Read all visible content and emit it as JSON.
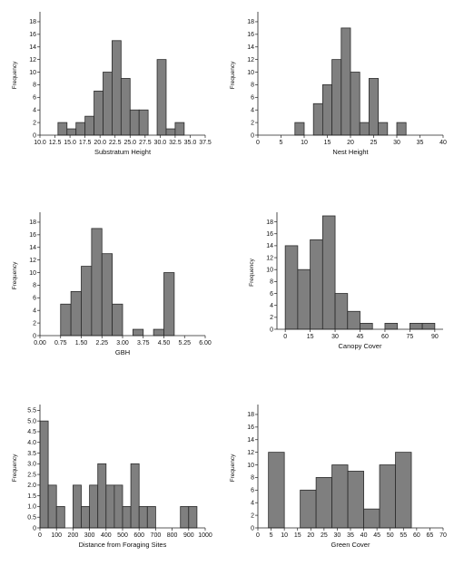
{
  "chart_data": [
    {
      "type": "bar",
      "xlabel": "Substratum Height",
      "ylabel": "Frequency",
      "xlim": [
        10.0,
        37.5
      ],
      "xticks": [
        10.0,
        12.5,
        15.0,
        17.5,
        20.0,
        22.5,
        25.0,
        27.5,
        30.0,
        32.5,
        35.0,
        37.5
      ],
      "xtick_labels": [
        "10.0",
        "12.5",
        "15.0",
        "17.5",
        "20.0",
        "22.5",
        "25.0",
        "27.5",
        "30.0",
        "32.5",
        "35.0",
        "37.5"
      ],
      "ylim": [
        0,
        19
      ],
      "yticks": [
        0,
        2,
        4,
        6,
        8,
        10,
        12,
        14,
        16,
        18
      ],
      "bin_width": 1.5,
      "bin_starts": [
        13,
        14.5,
        16,
        17.5,
        19,
        20.5,
        22,
        23.5,
        25,
        26.5,
        28,
        29.5,
        31,
        32.5
      ],
      "values": [
        2,
        1,
        2,
        3,
        7,
        10,
        15,
        9,
        4,
        4,
        0,
        12,
        1,
        2
      ]
    },
    {
      "type": "bar",
      "xlabel": "Nest Height",
      "ylabel": "Frequency",
      "xlim": [
        0,
        40
      ],
      "xticks": [
        0,
        5,
        10,
        15,
        20,
        25,
        30,
        35,
        40
      ],
      "xtick_labels": [
        "0",
        "5",
        "10",
        "15",
        "20",
        "25",
        "30",
        "35",
        "40"
      ],
      "ylim": [
        0,
        19
      ],
      "yticks": [
        0,
        2,
        4,
        6,
        8,
        10,
        12,
        14,
        16,
        18
      ],
      "bin_width": 2,
      "bin_starts": [
        8,
        10,
        12,
        14,
        16,
        18,
        20,
        22,
        24,
        26,
        28,
        30
      ],
      "values": [
        2,
        0,
        5,
        8,
        12,
        17,
        10,
        2,
        9,
        2,
        0,
        2
      ]
    },
    {
      "type": "bar",
      "xlabel": "GBH",
      "ylabel": "Frequency",
      "xlim": [
        0,
        6
      ],
      "xticks": [
        0,
        0.75,
        1.5,
        2.25,
        3,
        3.75,
        4.5,
        5.25,
        6
      ],
      "xtick_labels": [
        "0.00",
        "0.75",
        "1.50",
        "2.25",
        "3.00",
        "3.75",
        "4.50",
        "5.25",
        "6.00"
      ],
      "ylim": [
        0,
        19
      ],
      "yticks": [
        0,
        2,
        4,
        6,
        8,
        10,
        12,
        14,
        16,
        18
      ],
      "bin_width": 0.375,
      "bin_starts": [
        0.75,
        1.125,
        1.5,
        1.875,
        2.25,
        2.625,
        3.0,
        3.375,
        3.75,
        4.125,
        4.5
      ],
      "values": [
        5,
        7,
        11,
        17,
        13,
        5,
        0,
        1,
        0,
        1,
        10
      ]
    },
    {
      "type": "bar",
      "xlabel": "Canopy Cover",
      "ylabel": "Frequency",
      "xlim": [
        -5,
        95
      ],
      "xticks": [
        0,
        15,
        30,
        45,
        60,
        75,
        90
      ],
      "xtick_labels": [
        "0",
        "15",
        "30",
        "45",
        "60",
        "75",
        "90"
      ],
      "ylim": [
        0,
        19
      ],
      "yticks": [
        0,
        2,
        4,
        6,
        8,
        10,
        12,
        14,
        16,
        18
      ],
      "bin_width": 7.5,
      "bin_starts": [
        0,
        7.5,
        15,
        22.5,
        30,
        37.5,
        45,
        52.5,
        60,
        67.5,
        75,
        82.5
      ],
      "values": [
        14,
        10,
        15,
        19,
        6,
        3,
        1,
        0,
        1,
        0,
        1,
        1
      ]
    },
    {
      "type": "bar",
      "xlabel": "Distance from Foraging Sites",
      "ylabel": "Frequency",
      "xlim": [
        0,
        1000
      ],
      "xticks": [
        0,
        100,
        200,
        300,
        400,
        500,
        600,
        700,
        800,
        900,
        1000
      ],
      "xtick_labels": [
        "0",
        "100",
        "200",
        "300",
        "400",
        "500",
        "600",
        "700",
        "800",
        "900",
        "1000"
      ],
      "ylim": [
        0,
        5.6
      ],
      "yticks": [
        0,
        0.5,
        1.0,
        1.5,
        2.0,
        2.5,
        3.0,
        3.5,
        4.0,
        4.5,
        5.0,
        5.5
      ],
      "ytick_labels": [
        "0",
        "0.5",
        "1.0",
        "1.5",
        "2.0",
        "2.5",
        "3.0",
        "3.5",
        "4.0",
        "4.5",
        "5.0",
        "5.5"
      ],
      "bin_width": 50,
      "bin_starts": [
        0,
        50,
        100,
        150,
        200,
        250,
        300,
        350,
        400,
        450,
        500,
        550,
        600,
        650,
        700,
        750,
        800,
        850,
        900
      ],
      "values": [
        5,
        2,
        1,
        0,
        2,
        1,
        2,
        3,
        2,
        2,
        1,
        3,
        1,
        1,
        0,
        0,
        0,
        1,
        1
      ]
    },
    {
      "type": "bar",
      "xlabel": "Green Cover",
      "ylabel": "Frequency",
      "xlim": [
        0,
        70
      ],
      "xticks": [
        0,
        5,
        10,
        15,
        20,
        25,
        30,
        35,
        40,
        45,
        50,
        55,
        60,
        65,
        70
      ],
      "xtick_labels": [
        "0",
        "5",
        "10",
        "15",
        "20",
        "25",
        "30",
        "35",
        "40",
        "45",
        "50",
        "55",
        "60",
        "65",
        "70"
      ],
      "ylim": [
        0,
        19
      ],
      "yticks": [
        0,
        2,
        4,
        6,
        8,
        10,
        12,
        14,
        16,
        18
      ],
      "bin_width": 6,
      "bin_starts": [
        4,
        10,
        16,
        22,
        28,
        34,
        40,
        46,
        52
      ],
      "values": [
        12,
        0,
        6,
        8,
        10,
        9,
        3,
        10,
        12
      ]
    }
  ],
  "colors": {
    "bar_fill": "#7f7f7f",
    "bar_stroke": "#2b2b2b",
    "axis": "#222222",
    "background": "#ffffff"
  }
}
